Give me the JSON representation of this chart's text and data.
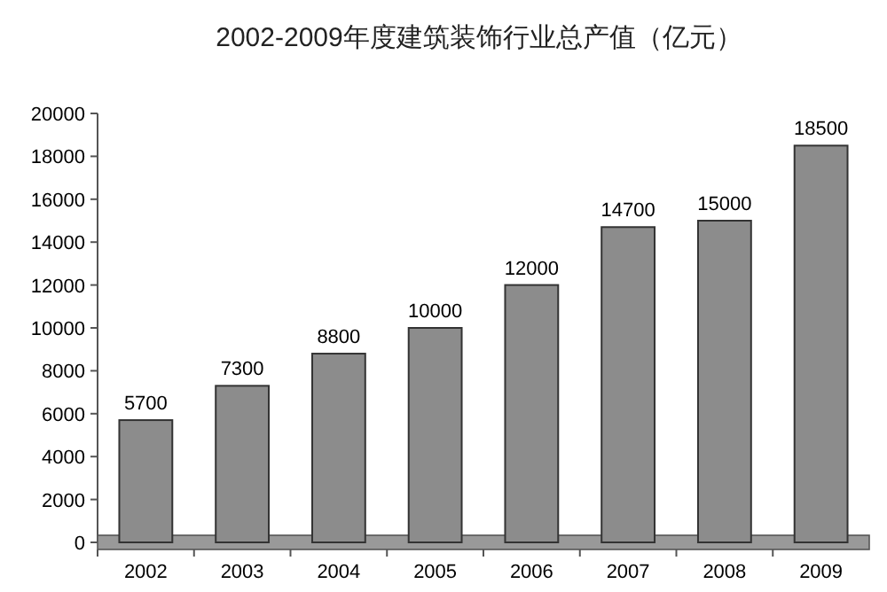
{
  "chart_data": {
    "type": "bar",
    "title": "2002-2009年度建筑装饰行业总产值（亿元）",
    "categories": [
      "2002",
      "2003",
      "2004",
      "2005",
      "2006",
      "2007",
      "2008",
      "2009"
    ],
    "values": [
      5700,
      7300,
      8800,
      10000,
      12000,
      14700,
      15000,
      18500
    ],
    "color": "#8c8c8c",
    "ylim": [
      0,
      20000
    ],
    "yticks": [
      0,
      2000,
      4000,
      6000,
      8000,
      10000,
      12000,
      14000,
      16000,
      18000,
      20000
    ],
    "data_labels": true
  }
}
